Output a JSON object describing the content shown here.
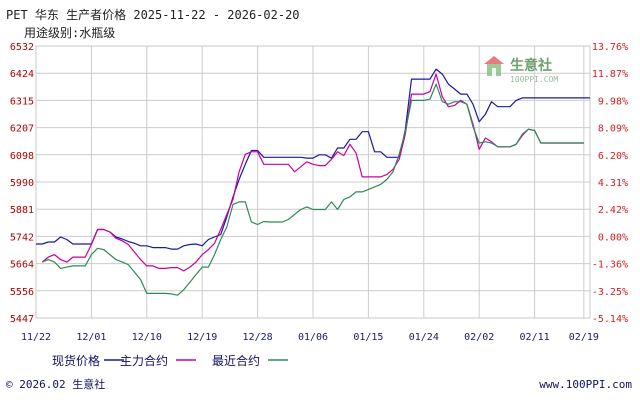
{
  "header": {
    "title": "PET 华东 生产者价格 2025-11-22 - 2026-02-20",
    "subtitle": "用途级别:水瓶级"
  },
  "watermark": {
    "name": "生意社",
    "url": "100PPI.COM"
  },
  "footer": {
    "copyright": "© 2026.02 生意社",
    "website": "www.100PPI.com"
  },
  "colors": {
    "spot": "#1a1a9c",
    "main_contract": "#cc0099",
    "latest_contract": "#2e8b57",
    "grid": "#cccccc"
  },
  "chart_data": {
    "type": "line",
    "title": "PET 华东 生产者价格 2025-11-22 - 2026-02-20",
    "subtitle": "用途级别:水瓶级",
    "x_ticks": [
      "11/22",
      "12/01",
      "12/10",
      "12/19",
      "12/28",
      "01/06",
      "01/15",
      "01/24",
      "02/02",
      "02/11",
      "02/19"
    ],
    "y_ticks_left": [
      6532,
      6424,
      6315,
      6207,
      6098,
      5990,
      5881,
      5742,
      5664,
      5556,
      5447
    ],
    "y_ticks_right": [
      "13.76%",
      "11.87%",
      "9.98%",
      "8.09%",
      "6.20%",
      "4.31%",
      "2.42%",
      "0.00%",
      "-1.36%",
      "-3.25%",
      "-5.14%"
    ],
    "ylim": [
      5447,
      6532
    ],
    "grid": true,
    "legend_position": "bottom",
    "series": [
      {
        "name": "现货价格",
        "color": "#1a1a9c",
        "points": [
          [
            "2025-11-22",
            5742
          ],
          [
            "2025-11-23",
            5742
          ],
          [
            "2025-11-24",
            5750
          ],
          [
            "2025-11-25",
            5750
          ],
          [
            "2025-11-26",
            5770
          ],
          [
            "2025-11-27",
            5760
          ],
          [
            "2025-11-28",
            5742
          ],
          [
            "2025-11-29",
            5742
          ],
          [
            "2025-11-30",
            5742
          ],
          [
            "2025-12-01",
            5742
          ],
          [
            "2025-12-02",
            5800
          ],
          [
            "2025-12-03",
            5800
          ],
          [
            "2025-12-04",
            5790
          ],
          [
            "2025-12-05",
            5770
          ],
          [
            "2025-12-06",
            5762
          ],
          [
            "2025-12-07",
            5752
          ],
          [
            "2025-12-08",
            5745
          ],
          [
            "2025-12-09",
            5735
          ],
          [
            "2025-12-10",
            5735
          ],
          [
            "2025-12-11",
            5728
          ],
          [
            "2025-12-12",
            5728
          ],
          [
            "2025-12-13",
            5728
          ],
          [
            "2025-12-14",
            5722
          ],
          [
            "2025-12-15",
            5722
          ],
          [
            "2025-12-16",
            5735
          ],
          [
            "2025-12-17",
            5740
          ],
          [
            "2025-12-18",
            5742
          ],
          [
            "2025-12-19",
            5735
          ],
          [
            "2025-12-20",
            5760
          ],
          [
            "2025-12-21",
            5770
          ],
          [
            "2025-12-22",
            5780
          ],
          [
            "2025-12-23",
            5850
          ],
          [
            "2025-12-24",
            5930
          ],
          [
            "2025-12-25",
            6000
          ],
          [
            "2025-12-26",
            6060
          ],
          [
            "2025-12-27",
            6115
          ],
          [
            "2025-12-28",
            6115
          ],
          [
            "2025-12-29",
            6088
          ],
          [
            "2025-12-30",
            6088
          ],
          [
            "2025-12-31",
            6088
          ],
          [
            "2026-01-01",
            6088
          ],
          [
            "2026-01-02",
            6088
          ],
          [
            "2026-01-03",
            6088
          ],
          [
            "2026-01-04",
            6088
          ],
          [
            "2026-01-05",
            6085
          ],
          [
            "2026-01-06",
            6085
          ],
          [
            "2026-01-07",
            6098
          ],
          [
            "2026-01-08",
            6098
          ],
          [
            "2026-01-09",
            6085
          ],
          [
            "2026-01-10",
            6125
          ],
          [
            "2026-01-11",
            6125
          ],
          [
            "2026-01-12",
            6160
          ],
          [
            "2026-01-13",
            6160
          ],
          [
            "2026-01-14",
            6190
          ],
          [
            "2026-01-15",
            6190
          ],
          [
            "2026-01-16",
            6110
          ],
          [
            "2026-01-17",
            6110
          ],
          [
            "2026-01-18",
            6088
          ],
          [
            "2026-01-19",
            6088
          ],
          [
            "2026-01-20",
            6088
          ],
          [
            "2026-01-21",
            6198
          ],
          [
            "2026-01-22",
            6400
          ],
          [
            "2026-01-23",
            6400
          ],
          [
            "2026-01-24",
            6400
          ],
          [
            "2026-01-25",
            6400
          ],
          [
            "2026-01-26",
            6440
          ],
          [
            "2026-01-27",
            6420
          ],
          [
            "2026-01-28",
            6380
          ],
          [
            "2026-01-29",
            6360
          ],
          [
            "2026-01-30",
            6340
          ],
          [
            "2026-01-31",
            6340
          ],
          [
            "2026-02-01",
            6300
          ],
          [
            "2026-02-02",
            6230
          ],
          [
            "2026-02-03",
            6260
          ],
          [
            "2026-02-04",
            6310
          ],
          [
            "2026-02-05",
            6290
          ],
          [
            "2026-02-06",
            6290
          ],
          [
            "2026-02-07",
            6290
          ],
          [
            "2026-02-08",
            6315
          ],
          [
            "2026-02-09",
            6325
          ],
          [
            "2026-02-10",
            6325
          ],
          [
            "2026-02-11",
            6325
          ],
          [
            "2026-02-12",
            6325
          ],
          [
            "2026-02-13",
            6325
          ],
          [
            "2026-02-14",
            6325
          ],
          [
            "2026-02-15",
            6325
          ],
          [
            "2026-02-16",
            6325
          ],
          [
            "2026-02-17",
            6325
          ],
          [
            "2026-02-18",
            6325
          ],
          [
            "2026-02-19",
            6325
          ],
          [
            "2026-02-20",
            6325
          ]
        ]
      },
      {
        "name": "主力合约",
        "color": "#cc0099",
        "points": [
          [
            "2025-11-23",
            5670
          ],
          [
            "2025-11-24",
            5690
          ],
          [
            "2025-11-25",
            5700
          ],
          [
            "2025-11-26",
            5680
          ],
          [
            "2025-11-27",
            5670
          ],
          [
            "2025-11-28",
            5690
          ],
          [
            "2025-11-29",
            5690
          ],
          [
            "2025-11-30",
            5690
          ],
          [
            "2025-12-01",
            5740
          ],
          [
            "2025-12-02",
            5800
          ],
          [
            "2025-12-03",
            5800
          ],
          [
            "2025-12-04",
            5790
          ],
          [
            "2025-12-05",
            5765
          ],
          [
            "2025-12-06",
            5755
          ],
          [
            "2025-12-07",
            5740
          ],
          [
            "2025-12-08",
            5710
          ],
          [
            "2025-12-09",
            5680
          ],
          [
            "2025-12-10",
            5655
          ],
          [
            "2025-12-11",
            5655
          ],
          [
            "2025-12-12",
            5645
          ],
          [
            "2025-12-13",
            5645
          ],
          [
            "2025-12-14",
            5648
          ],
          [
            "2025-12-15",
            5648
          ],
          [
            "2025-12-16",
            5635
          ],
          [
            "2025-12-17",
            5650
          ],
          [
            "2025-12-18",
            5670
          ],
          [
            "2025-12-19",
            5700
          ],
          [
            "2025-12-20",
            5720
          ],
          [
            "2025-12-21",
            5745
          ],
          [
            "2025-12-22",
            5800
          ],
          [
            "2025-12-23",
            5860
          ],
          [
            "2025-12-24",
            5920
          ],
          [
            "2025-12-25",
            6030
          ],
          [
            "2025-12-26",
            6100
          ],
          [
            "2025-12-27",
            6110
          ],
          [
            "2025-12-28",
            6110
          ],
          [
            "2025-12-29",
            6060
          ],
          [
            "2025-12-30",
            6060
          ],
          [
            "2025-12-31",
            6060
          ],
          [
            "2026-01-01",
            6060
          ],
          [
            "2026-01-02",
            6060
          ],
          [
            "2026-01-03",
            6030
          ],
          [
            "2026-01-04",
            6050
          ],
          [
            "2026-01-05",
            6070
          ],
          [
            "2026-01-06",
            6060
          ],
          [
            "2026-01-07",
            6055
          ],
          [
            "2026-01-08",
            6055
          ],
          [
            "2026-01-09",
            6080
          ],
          [
            "2026-01-10",
            6110
          ],
          [
            "2026-01-11",
            6095
          ],
          [
            "2026-01-12",
            6140
          ],
          [
            "2026-01-13",
            6105
          ],
          [
            "2026-01-14",
            6010
          ],
          [
            "2026-01-15",
            6010
          ],
          [
            "2026-01-16",
            6010
          ],
          [
            "2026-01-17",
            6010
          ],
          [
            "2026-01-18",
            6020
          ],
          [
            "2026-01-19",
            6040
          ],
          [
            "2026-01-20",
            6080
          ],
          [
            "2026-01-21",
            6180
          ],
          [
            "2026-01-22",
            6340
          ],
          [
            "2026-01-23",
            6340
          ],
          [
            "2026-01-24",
            6340
          ],
          [
            "2026-01-25",
            6350
          ],
          [
            "2026-01-26",
            6420
          ],
          [
            "2026-01-27",
            6330
          ],
          [
            "2026-01-28",
            6290
          ],
          [
            "2026-01-29",
            6295
          ],
          [
            "2026-01-30",
            6315
          ],
          [
            "2026-01-31",
            6300
          ],
          [
            "2026-02-01",
            6220
          ],
          [
            "2026-02-02",
            6120
          ],
          [
            "2026-02-03",
            6165
          ],
          [
            "2026-02-04",
            6150
          ],
          [
            "2026-02-05",
            6130
          ],
          [
            "2026-02-06",
            6130
          ],
          [
            "2026-02-07",
            6130
          ],
          [
            "2026-02-08",
            6140
          ],
          [
            "2026-02-09",
            6175
          ],
          [
            "2026-02-10",
            6200
          ],
          [
            "2026-02-11",
            6195
          ],
          [
            "2026-02-12",
            6145
          ],
          [
            "2026-02-13",
            6145
          ],
          [
            "2026-02-14",
            6145
          ],
          [
            "2026-02-15",
            6145
          ],
          [
            "2026-02-16",
            6145
          ],
          [
            "2026-02-17",
            6145
          ],
          [
            "2026-02-18",
            6145
          ],
          [
            "2026-02-19",
            6145
          ]
        ]
      },
      {
        "name": "最近合约",
        "color": "#2e8b57",
        "points": [
          [
            "2025-11-23",
            5670
          ],
          [
            "2025-11-24",
            5680
          ],
          [
            "2025-11-25",
            5670
          ],
          [
            "2025-11-26",
            5645
          ],
          [
            "2025-11-27",
            5650
          ],
          [
            "2025-11-28",
            5655
          ],
          [
            "2025-11-29",
            5655
          ],
          [
            "2025-11-30",
            5655
          ],
          [
            "2025-12-01",
            5700
          ],
          [
            "2025-12-02",
            5725
          ],
          [
            "2025-12-03",
            5720
          ],
          [
            "2025-12-04",
            5700
          ],
          [
            "2025-12-05",
            5680
          ],
          [
            "2025-12-06",
            5670
          ],
          [
            "2025-12-07",
            5660
          ],
          [
            "2025-12-08",
            5630
          ],
          [
            "2025-12-09",
            5600
          ],
          [
            "2025-12-10",
            5545
          ],
          [
            "2025-12-11",
            5545
          ],
          [
            "2025-12-12",
            5545
          ],
          [
            "2025-12-13",
            5545
          ],
          [
            "2025-12-14",
            5543
          ],
          [
            "2025-12-15",
            5538
          ],
          [
            "2025-12-16",
            5560
          ],
          [
            "2025-12-17",
            5590
          ],
          [
            "2025-12-18",
            5620
          ],
          [
            "2025-12-19",
            5650
          ],
          [
            "2025-12-20",
            5650
          ],
          [
            "2025-12-21",
            5700
          ],
          [
            "2025-12-22",
            5760
          ],
          [
            "2025-12-23",
            5810
          ],
          [
            "2025-12-24",
            5900
          ],
          [
            "2025-12-25",
            5910
          ],
          [
            "2025-12-26",
            5910
          ],
          [
            "2025-12-27",
            5830
          ],
          [
            "2025-12-28",
            5820
          ],
          [
            "2025-12-29",
            5832
          ],
          [
            "2025-12-30",
            5830
          ],
          [
            "2025-12-31",
            5830
          ],
          [
            "2026-01-01",
            5830
          ],
          [
            "2026-01-02",
            5840
          ],
          [
            "2026-01-03",
            5860
          ],
          [
            "2026-01-04",
            5880
          ],
          [
            "2026-01-05",
            5890
          ],
          [
            "2026-01-06",
            5880
          ],
          [
            "2026-01-07",
            5880
          ],
          [
            "2026-01-08",
            5880
          ],
          [
            "2026-01-09",
            5910
          ],
          [
            "2026-01-10",
            5880
          ],
          [
            "2026-01-11",
            5920
          ],
          [
            "2026-01-12",
            5930
          ],
          [
            "2026-01-13",
            5950
          ],
          [
            "2026-01-14",
            5950
          ],
          [
            "2026-01-15",
            5960
          ],
          [
            "2026-01-16",
            5970
          ],
          [
            "2026-01-17",
            5980
          ],
          [
            "2026-01-18",
            6000
          ],
          [
            "2026-01-19",
            6030
          ],
          [
            "2026-01-20",
            6100
          ],
          [
            "2026-01-21",
            6190
          ],
          [
            "2026-01-22",
            6315
          ],
          [
            "2026-01-23",
            6315
          ],
          [
            "2026-01-24",
            6315
          ],
          [
            "2026-01-25",
            6320
          ],
          [
            "2026-01-26",
            6380
          ],
          [
            "2026-01-27",
            6310
          ],
          [
            "2026-01-28",
            6300
          ],
          [
            "2026-01-29",
            6310
          ],
          [
            "2026-01-30",
            6310
          ],
          [
            "2026-01-31",
            6300
          ],
          [
            "2026-02-01",
            6210
          ],
          [
            "2026-02-02",
            6145
          ],
          [
            "2026-02-03",
            6150
          ],
          [
            "2026-02-04",
            6145
          ],
          [
            "2026-02-05",
            6130
          ],
          [
            "2026-02-06",
            6130
          ],
          [
            "2026-02-07",
            6130
          ],
          [
            "2026-02-08",
            6140
          ],
          [
            "2026-02-09",
            6180
          ],
          [
            "2026-02-10",
            6200
          ],
          [
            "2026-02-11",
            6195
          ],
          [
            "2026-02-12",
            6145
          ],
          [
            "2026-02-13",
            6145
          ],
          [
            "2026-02-14",
            6145
          ],
          [
            "2026-02-15",
            6145
          ],
          [
            "2026-02-16",
            6145
          ],
          [
            "2026-02-17",
            6145
          ],
          [
            "2026-02-18",
            6145
          ],
          [
            "2026-02-19",
            6145
          ]
        ]
      }
    ]
  }
}
